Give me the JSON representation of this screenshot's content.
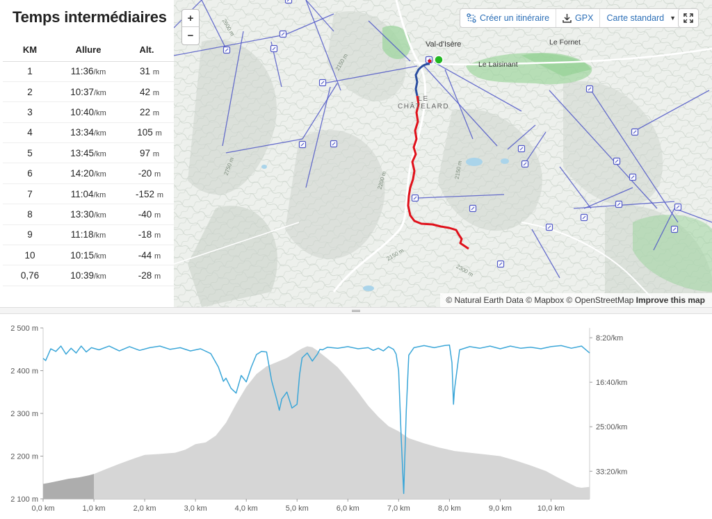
{
  "splits": {
    "title": "Temps intermédiaires",
    "headers": [
      "KM",
      "Allure",
      "Alt."
    ],
    "pace_unit": "/km",
    "alt_unit": "m",
    "rows": [
      {
        "km": "1",
        "pace": "11:36",
        "alt": "31"
      },
      {
        "km": "2",
        "pace": "10:37",
        "alt": "42"
      },
      {
        "km": "3",
        "pace": "10:40",
        "alt": "22"
      },
      {
        "km": "4",
        "pace": "13:34",
        "alt": "105"
      },
      {
        "km": "5",
        "pace": "13:45",
        "alt": "97"
      },
      {
        "km": "6",
        "pace": "14:20",
        "alt": "-20"
      },
      {
        "km": "7",
        "pace": "11:04",
        "alt": "-152"
      },
      {
        "km": "8",
        "pace": "13:30",
        "alt": "-40"
      },
      {
        "km": "9",
        "pace": "11:18",
        "alt": "-18"
      },
      {
        "km": "10",
        "pace": "10:15",
        "alt": "-44"
      },
      {
        "km": "0,76",
        "pace": "10:39",
        "alt": "-28"
      }
    ]
  },
  "map": {
    "zoom_in": "+",
    "zoom_out": "−",
    "create_route_label": "Créer un itinéraire",
    "gpx_label": "GPX",
    "map_style_label": "Carte standard",
    "attribution": "© Natural Earth Data © Mapbox © OpenStreetMap",
    "improve_label": "Improve this map",
    "places": {
      "val_disere": "Val-d'Isère",
      "le_fornet": "Le Fornet",
      "le_laisinant": "Le Laisinant",
      "le_chatelard": "LE\nCHÂTELARD"
    },
    "contour_labels": [
      "2600 m",
      "2150 m",
      "2750 m",
      "2200 m",
      "2150 m",
      "2150 m",
      "2150 m",
      "2300 m"
    ],
    "colors": {
      "route_start": "#2b4ea0",
      "route": "#e0101a",
      "lift": "#5058c8",
      "forest": "#9fd6a0",
      "water": "#aad4ea",
      "start_marker": "#22b722"
    }
  },
  "chart_data": {
    "type": "area",
    "x_unit": "km",
    "xlim": [
      0,
      10.76
    ],
    "x_ticks": [
      "0,0 km",
      "1,0 km",
      "2,0 km",
      "3,0 km",
      "4,0 km",
      "5,0 km",
      "6,0 km",
      "7,0 km",
      "8,0 km",
      "9,0 km",
      "10,0 km"
    ],
    "y_left": {
      "label": "",
      "ylim": [
        2100,
        2500
      ],
      "ticks": [
        "2 100 m",
        "2 200 m",
        "2 300 m",
        "2 400 m",
        "2 500 m"
      ]
    },
    "y_right": {
      "label": "",
      "ticks": [
        "8:20/km",
        "16:40/km",
        "25:00/km",
        "33:20/km"
      ]
    },
    "series": [
      {
        "kind": "elevation",
        "unit": "m",
        "color": "#d6d6d6",
        "x": [
          0,
          0.1,
          0.3,
          0.5,
          0.7,
          0.9,
          1.0,
          1.2,
          1.5,
          1.8,
          2.0,
          2.3,
          2.6,
          2.8,
          3.0,
          3.2,
          3.4,
          3.6,
          3.8,
          4.0,
          4.2,
          4.4,
          4.6,
          4.8,
          5.0,
          5.1,
          5.2,
          5.3,
          5.4,
          5.6,
          5.8,
          6.0,
          6.2,
          6.4,
          6.6,
          6.8,
          7.0,
          7.2,
          7.5,
          7.8,
          8.1,
          8.4,
          8.7,
          9.0,
          9.3,
          9.6,
          9.9,
          10.1,
          10.3,
          10.5,
          10.6,
          10.76
        ],
        "values": [
          2135,
          2137,
          2142,
          2147,
          2150,
          2155,
          2158,
          2168,
          2182,
          2195,
          2203,
          2205,
          2208,
          2215,
          2228,
          2232,
          2248,
          2278,
          2322,
          2362,
          2392,
          2410,
          2420,
          2430,
          2445,
          2452,
          2457,
          2455,
          2447,
          2428,
          2408,
          2380,
          2350,
          2318,
          2292,
          2270,
          2258,
          2242,
          2230,
          2220,
          2212,
          2208,
          2204,
          2200,
          2190,
          2178,
          2165,
          2152,
          2140,
          2128,
          2126,
          2128
        ]
      },
      {
        "kind": "pace",
        "unit": "min/km",
        "color": "#3aa6d8",
        "x": [
          0,
          0.05,
          0.15,
          0.25,
          0.35,
          0.45,
          0.55,
          0.65,
          0.75,
          0.85,
          0.95,
          1.1,
          1.3,
          1.5,
          1.7,
          1.9,
          2.1,
          2.3,
          2.5,
          2.7,
          2.9,
          3.1,
          3.3,
          3.45,
          3.55,
          3.6,
          3.7,
          3.8,
          3.9,
          4.0,
          4.1,
          4.2,
          4.3,
          4.4,
          4.5,
          4.6,
          4.65,
          4.7,
          4.8,
          4.9,
          5.0,
          5.05,
          5.1,
          5.2,
          5.3,
          5.4,
          5.45,
          5.5,
          5.6,
          5.8,
          6.0,
          6.2,
          6.4,
          6.5,
          6.6,
          6.7,
          6.8,
          6.9,
          6.95,
          7.0,
          7.05,
          7.1,
          7.15,
          7.2,
          7.3,
          7.5,
          7.7,
          7.9,
          8.0,
          8.05,
          8.08,
          8.1,
          8.2,
          8.4,
          8.6,
          8.8,
          9.0,
          9.2,
          9.4,
          9.6,
          9.8,
          10.0,
          10.2,
          10.4,
          10.6,
          10.76
        ],
        "values": [
          12.2,
          12.6,
          10.4,
          10.9,
          9.9,
          11.4,
          10.3,
          11.2,
          9.9,
          11.0,
          10.2,
          10.6,
          9.9,
          10.8,
          10.0,
          10.7,
          10.2,
          9.9,
          10.5,
          10.2,
          10.8,
          10.4,
          11.3,
          13.8,
          16.5,
          15.9,
          17.8,
          18.7,
          15.4,
          16.6,
          13.8,
          11.5,
          10.9,
          11.0,
          16.4,
          19.9,
          21.9,
          19.8,
          18.5,
          21.5,
          20.8,
          15.2,
          12.1,
          11.2,
          12.7,
          11.4,
          10.5,
          10.6,
          10.1,
          10.3,
          10.0,
          10.4,
          10.2,
          10.7,
          10.3,
          10.8,
          10.0,
          10.5,
          11.4,
          14.5,
          27.0,
          37.5,
          22.0,
          11.6,
          10.2,
          9.8,
          10.2,
          9.8,
          9.7,
          13.0,
          20.8,
          18.0,
          10.6,
          10.0,
          10.3,
          9.9,
          10.4,
          9.9,
          10.3,
          10.1,
          10.4,
          10.0,
          9.8,
          10.3,
          9.9,
          11.2
        ]
      }
    ],
    "highlight_range": [
      0,
      1.0
    ],
    "pace_axis_range_min": [
      6.5,
      38.5
    ]
  }
}
